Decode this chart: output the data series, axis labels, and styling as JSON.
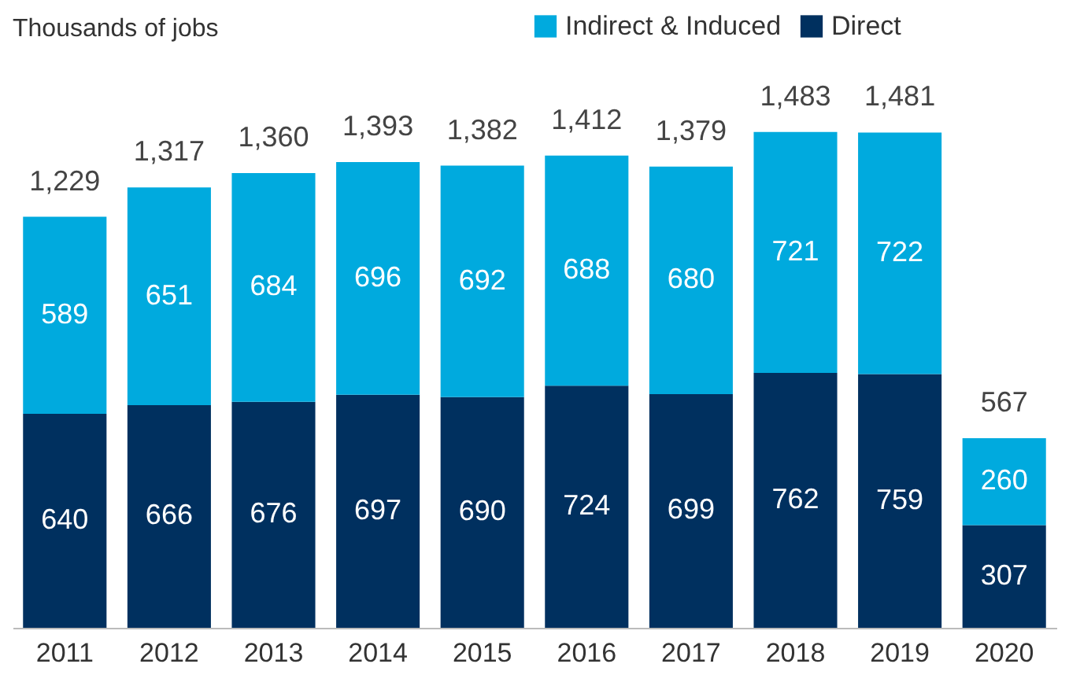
{
  "chart_data": {
    "type": "bar",
    "stacked": true,
    "ylabel": "Thousands of jobs",
    "categories": [
      "2011",
      "2012",
      "2013",
      "2014",
      "2015",
      "2016",
      "2017",
      "2018",
      "2019",
      "2020"
    ],
    "series": [
      {
        "name": "Direct",
        "color": "#00305f",
        "values": [
          640,
          666,
          676,
          697,
          690,
          724,
          699,
          762,
          759,
          307
        ]
      },
      {
        "name": "Indirect & Induced",
        "color": "#00aade",
        "values": [
          589,
          651,
          684,
          696,
          692,
          688,
          680,
          721,
          722,
          260
        ]
      }
    ],
    "data_labels": true,
    "totals": [
      "1,229",
      "1,317",
      "1,360",
      "1,393",
      "1,382",
      "1,412",
      "1,379",
      "1,483",
      "1,481",
      "567"
    ],
    "legend": "top right",
    "grid": false
  }
}
